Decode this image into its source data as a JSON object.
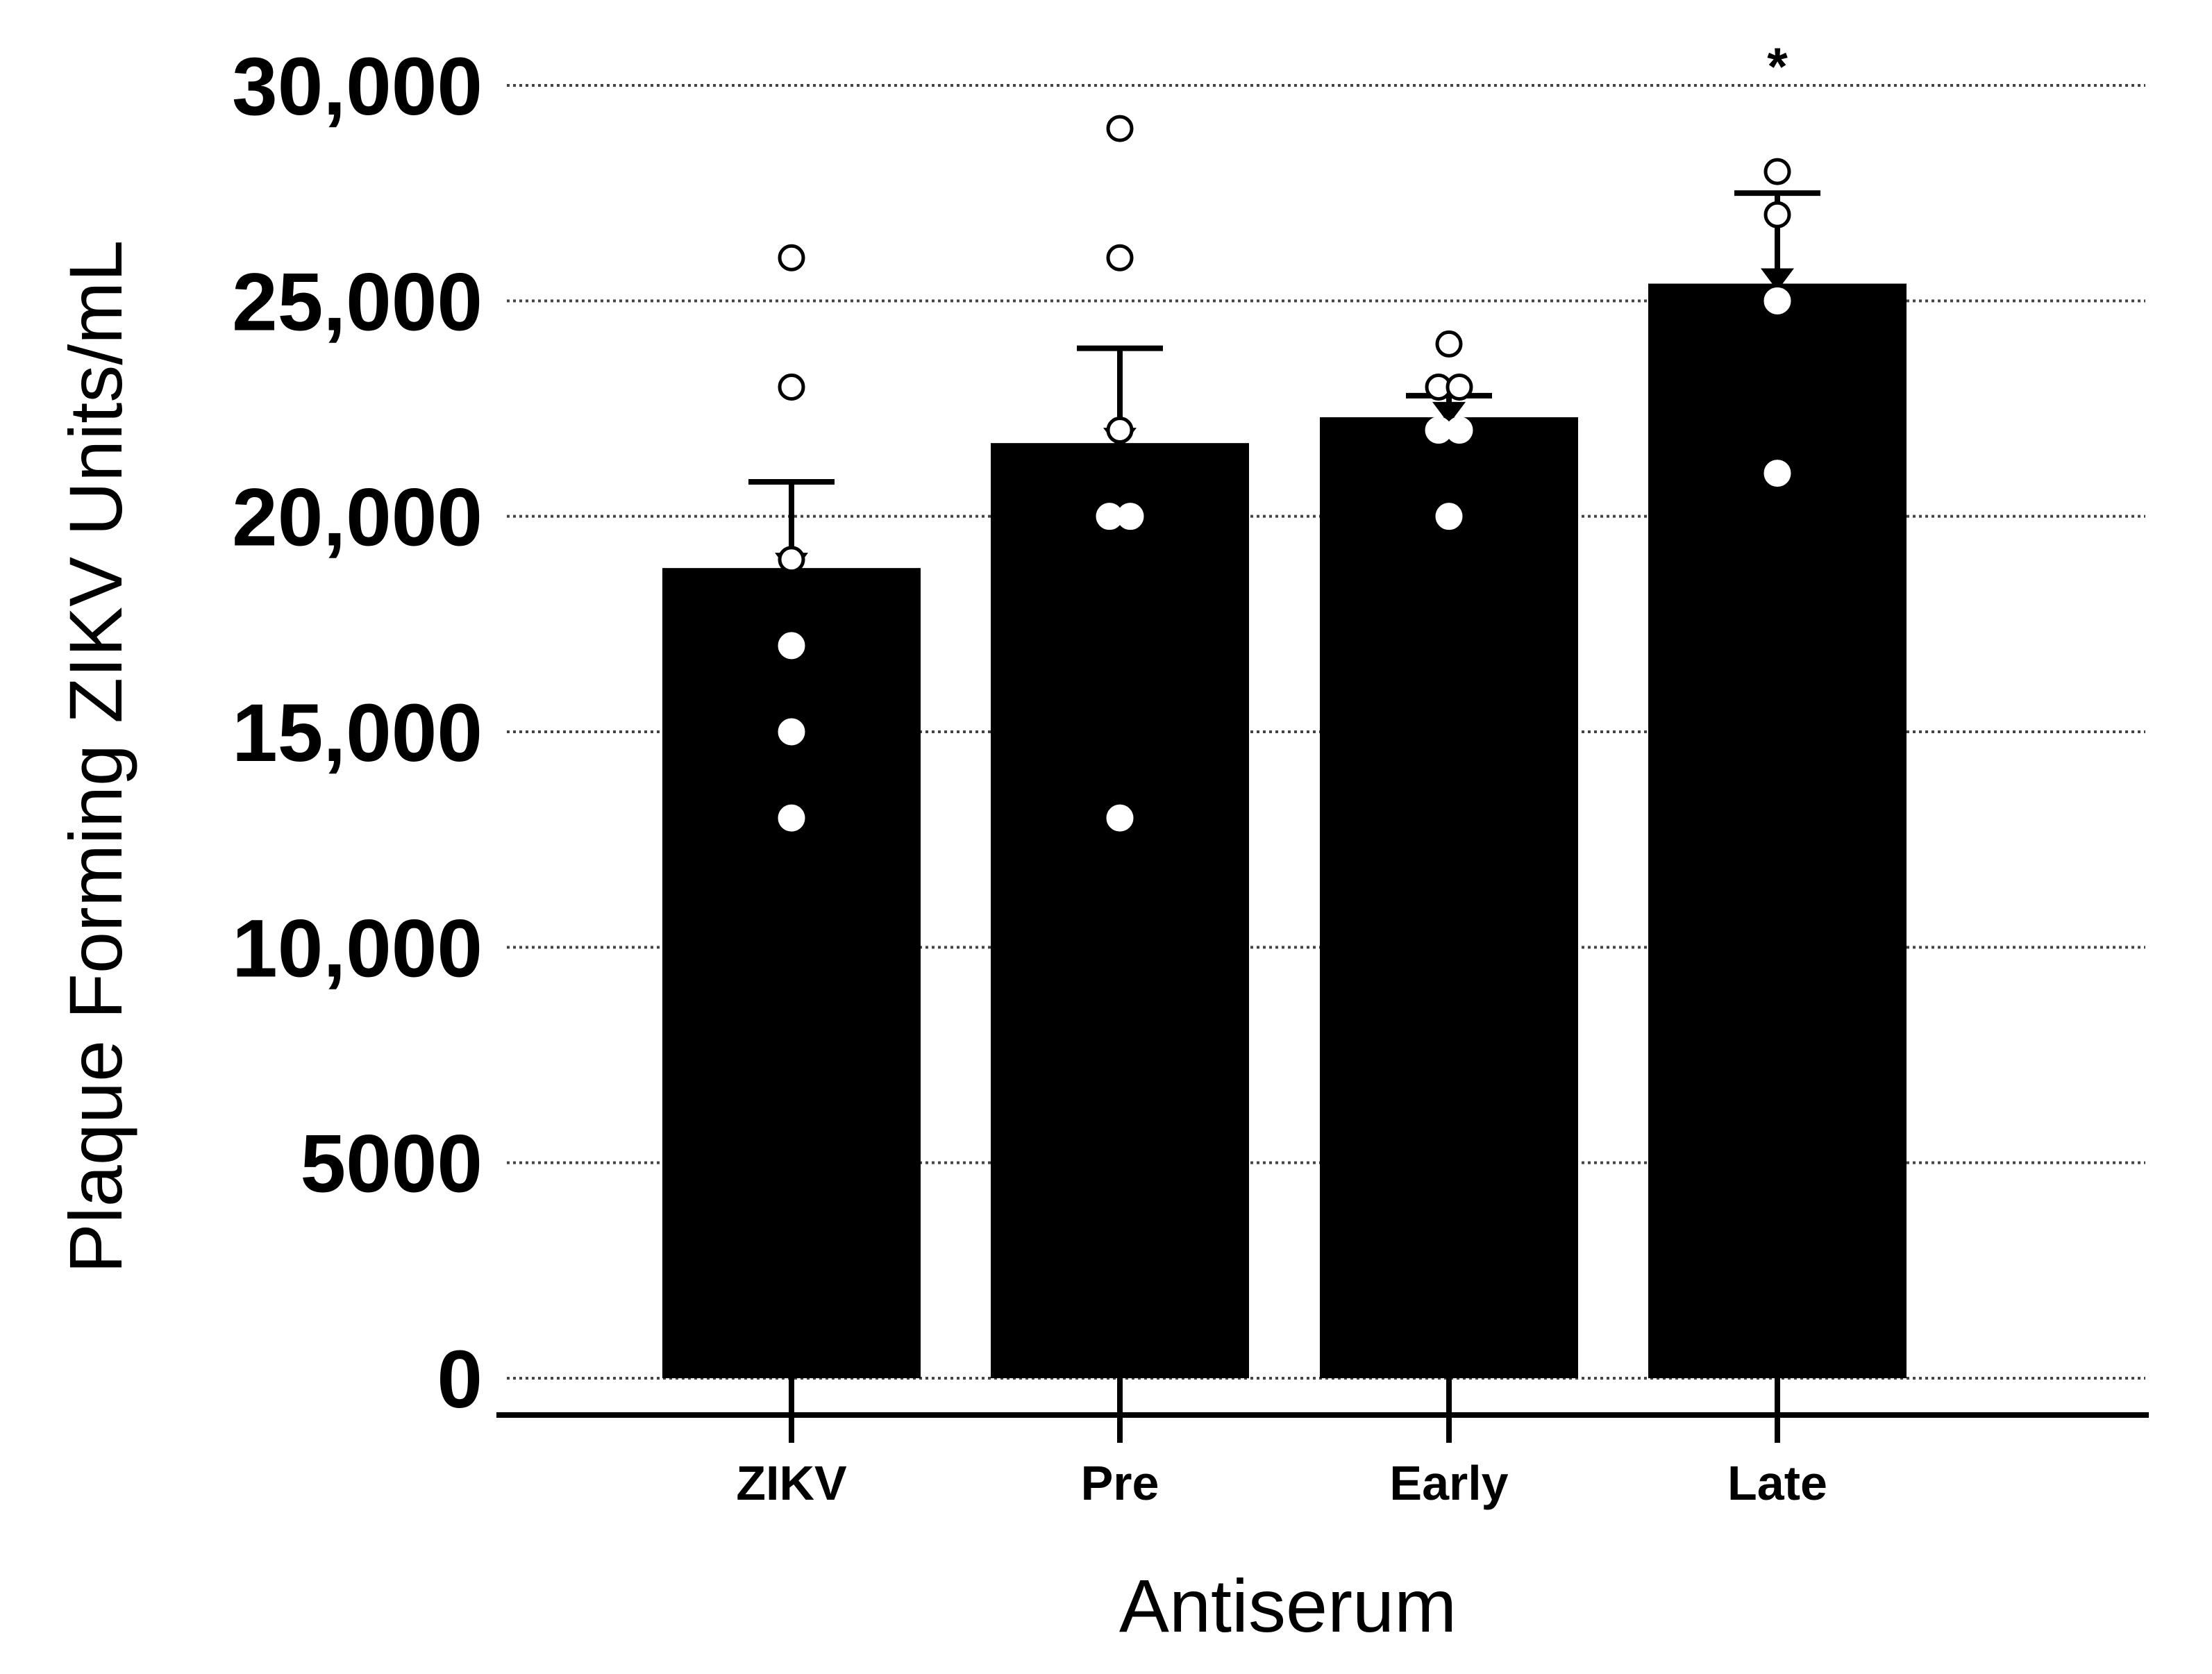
{
  "chart_data": {
    "type": "bar",
    "title": "",
    "xlabel": "Antiserum",
    "ylabel": "Plaque Forming ZIKV Units/mL",
    "ylim": [
      0,
      30000
    ],
    "yticks": [
      0,
      5000,
      10000,
      15000,
      20000,
      25000,
      30000
    ],
    "ytick_labels": [
      "0",
      "5000",
      "10,000",
      "15,000",
      "20,000",
      "25,000",
      "30,000"
    ],
    "grid": "horizontal dotted",
    "legend": "none",
    "categories": [
      "ZIKV",
      "Pre",
      "Early",
      "Late"
    ],
    "values": [
      18800,
      21700,
      22300,
      25400
    ],
    "error_upper": [
      20800,
      23900,
      22800,
      27500
    ],
    "points": [
      [
        26000,
        23000,
        19000,
        17000,
        15000,
        13000
      ],
      [
        29000,
        26000,
        22000,
        20000,
        20000,
        13000
      ],
      [
        24000,
        23000,
        23000,
        22000,
        22000,
        20000
      ],
      [
        28000,
        27000,
        25000,
        21000
      ]
    ],
    "annotations": [
      {
        "category": "Late",
        "text": "*"
      }
    ],
    "colors": {
      "bar": "#000000",
      "axis": "#000000",
      "grid": "#444444",
      "point_fill": "#ffffff",
      "point_stroke": "#000000"
    }
  }
}
